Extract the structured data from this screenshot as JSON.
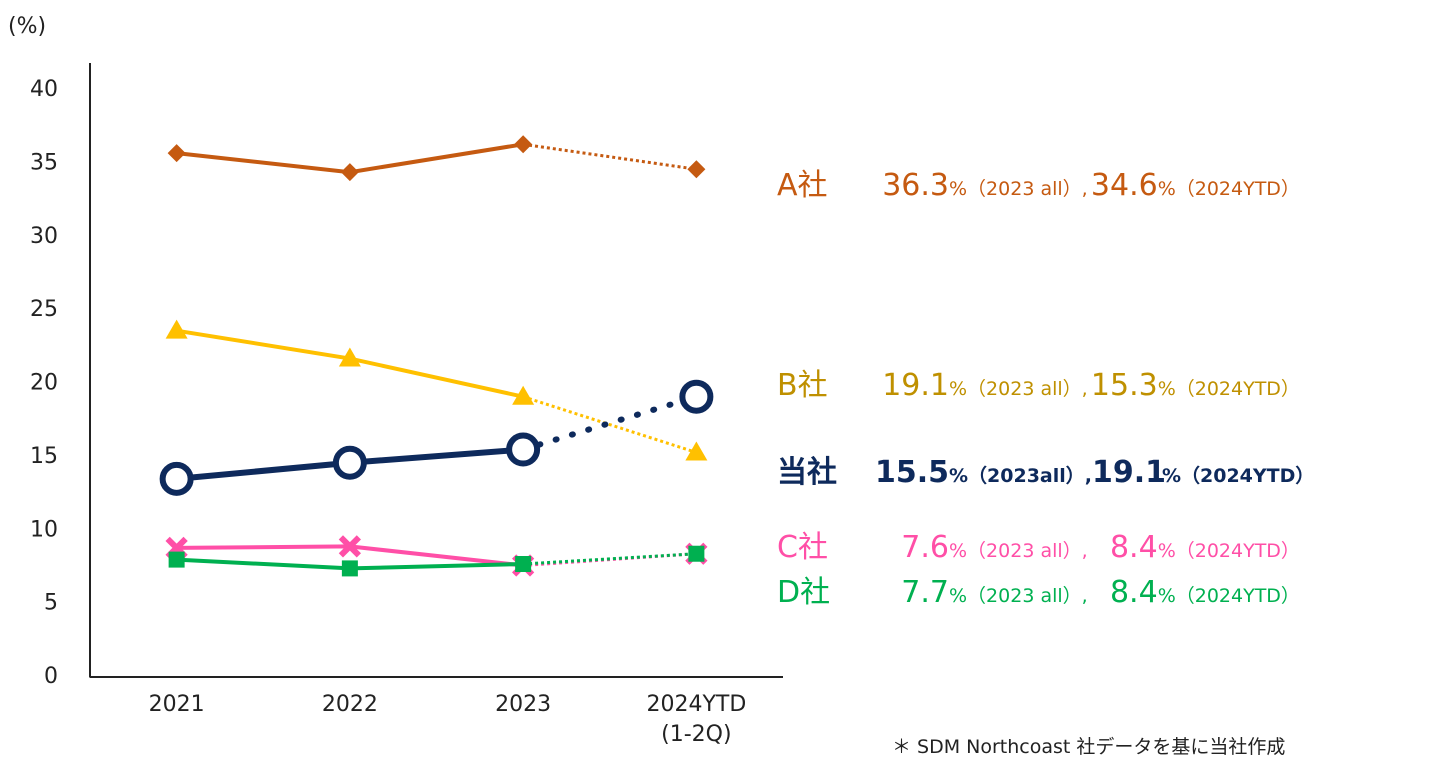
{
  "chart_data": {
    "type": "line",
    "y_axis_label": "(%)",
    "categories": [
      "2021",
      "2022",
      "2023",
      "2024YTD\n(1-2Q)"
    ],
    "ylim": [
      0,
      40
    ],
    "yticks": [
      0,
      5,
      10,
      15,
      20,
      25,
      30,
      35,
      40
    ],
    "dashed_last_segment": true,
    "series": [
      {
        "name": "A社",
        "color": "#c55a11",
        "marker": "diamond",
        "values": [
          35.7,
          34.4,
          36.3,
          34.6
        ],
        "annotation": {
          "color": "#c55a11",
          "parts": [
            "36.3",
            "%（2023 all）,",
            "34.6",
            "%（2024YTD）"
          ]
        }
      },
      {
        "name": "B社",
        "color": "#ffc000",
        "marker": "triangle",
        "values": [
          23.6,
          21.7,
          19.1,
          15.3
        ],
        "annotation": {
          "color": "#bf9000",
          "parts": [
            "19.1",
            "%（2023 all）,",
            "15.3",
            "%（2024YTD）"
          ]
        }
      },
      {
        "name": "当社",
        "color": "#0e2a5c",
        "marker": "circle",
        "values": [
          13.5,
          14.6,
          15.5,
          19.1
        ],
        "annotation": {
          "color": "#0e2a5c",
          "bold": true,
          "parts": [
            "15.5",
            "%（2023all）,",
            "19.1",
            "%（2024YTD）"
          ]
        }
      },
      {
        "name": "C社",
        "color": "#ff4fa7",
        "marker": "x",
        "values": [
          8.8,
          8.9,
          7.6,
          8.4
        ],
        "annotation": {
          "color": "#ff4fa7",
          "parts": [
            "7.6",
            "%（2023 all）,",
            "8.4",
            "%（2024YTD）"
          ]
        }
      },
      {
        "name": "D社",
        "color": "#00b050",
        "marker": "square",
        "values": [
          8.0,
          7.4,
          7.7,
          8.4
        ],
        "annotation": {
          "color": "#00b050",
          "parts": [
            "7.7",
            "%（2023 all）,",
            "8.4",
            "%（2024YTD）"
          ]
        }
      }
    ],
    "footnote": "＊ SDM Northcoast 社データを基に当社作成"
  }
}
